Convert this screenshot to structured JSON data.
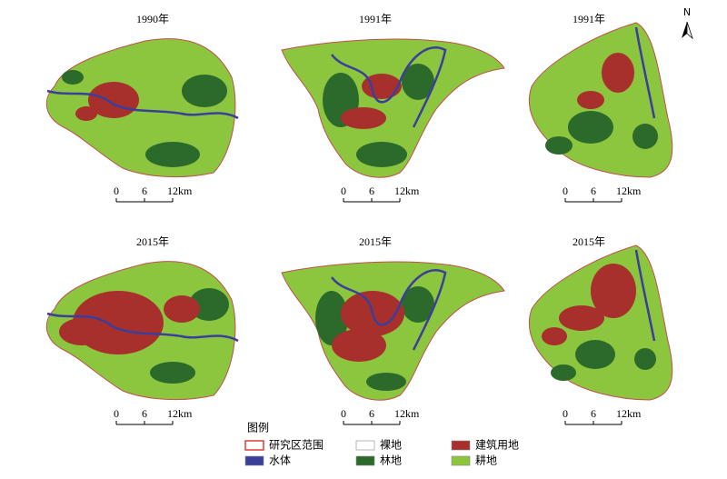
{
  "panels": [
    {
      "title": "1990年",
      "scale": [
        "0",
        "6",
        "12km"
      ]
    },
    {
      "title": "1991年",
      "scale": [
        "0",
        "6",
        "12km"
      ]
    },
    {
      "title": "1991年",
      "scale": [
        "0",
        "6",
        "12km"
      ]
    },
    {
      "title": "2015年",
      "scale": [
        "0",
        "6",
        "12km"
      ]
    },
    {
      "title": "2015年",
      "scale": [
        "0",
        "6",
        "12km"
      ]
    },
    {
      "title": "2015年",
      "scale": [
        "0",
        "6",
        "12km"
      ]
    }
  ],
  "north": "N",
  "legend": {
    "title": "图例",
    "items": [
      {
        "label": "研究区范围",
        "color": "#e0403a"
      },
      {
        "label": "水体",
        "color": "#3b3f9a"
      },
      {
        "label": "裸地",
        "color": "#ffffff"
      },
      {
        "label": "林地",
        "color": "#2c6a2c"
      },
      {
        "label": "建筑用地",
        "color": "#a8302c"
      },
      {
        "label": "耕地",
        "color": "#8cc63f"
      }
    ]
  }
}
